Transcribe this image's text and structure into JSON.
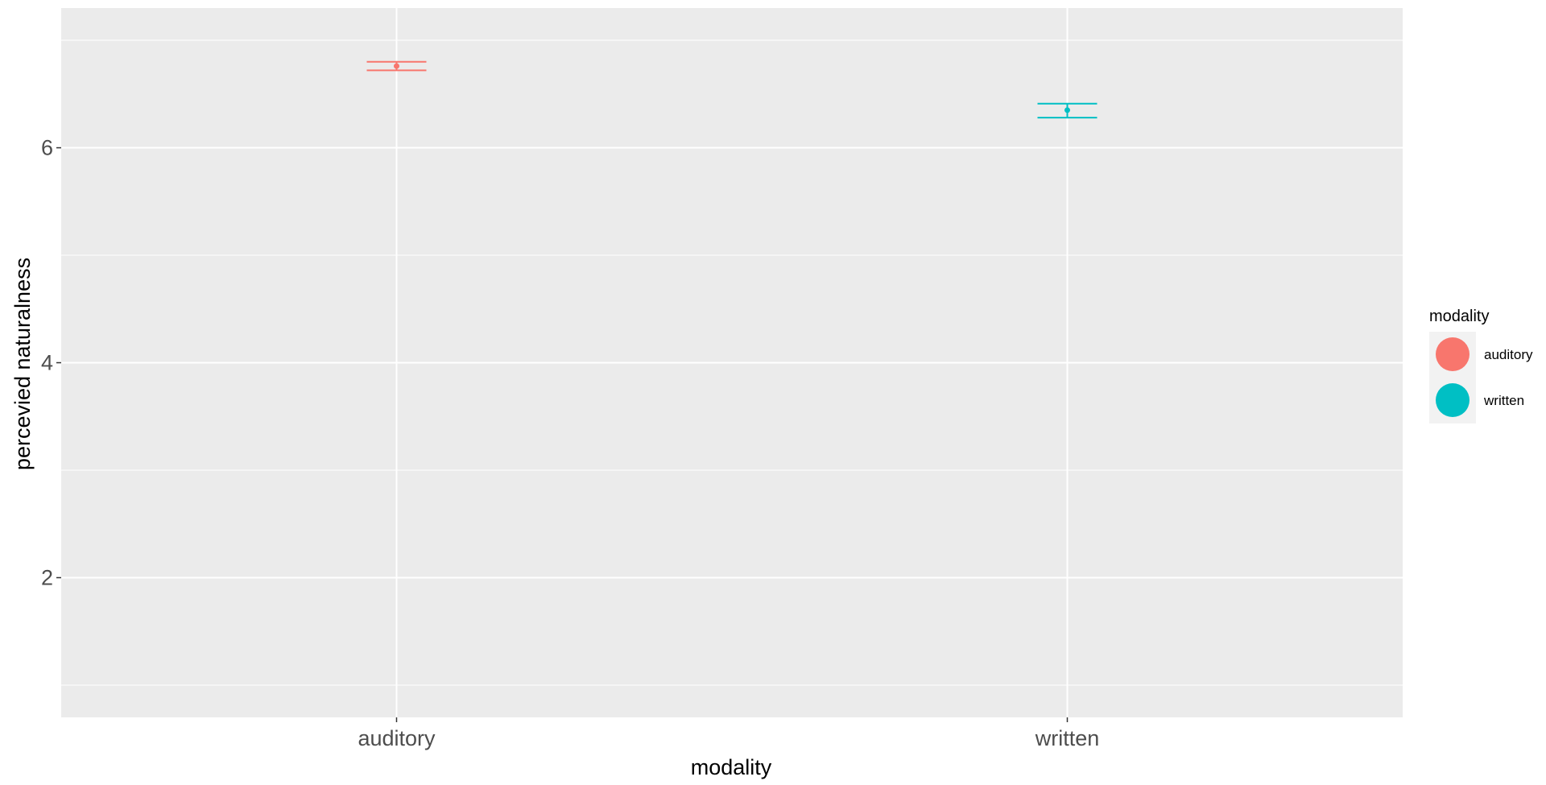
{
  "chart_data": {
    "type": "scatter",
    "subtype": "point-with-errorbars",
    "xlabel": "modality",
    "ylabel": "percevied naturalness",
    "categories": [
      "auditory",
      "written"
    ],
    "ylim": [
      0.7,
      7.3
    ],
    "yticks": [
      2,
      4,
      6
    ],
    "grid": true,
    "series": [
      {
        "name": "auditory",
        "category": "auditory",
        "value": 6.76,
        "lower": 6.72,
        "upper": 6.8,
        "color": "#F8766D"
      },
      {
        "name": "written",
        "category": "written",
        "value": 6.35,
        "lower": 6.28,
        "upper": 6.41,
        "color": "#00BFC4"
      }
    ],
    "legend": {
      "title": "modality",
      "position": "right",
      "items": [
        {
          "label": "auditory",
          "color": "#F8766D"
        },
        {
          "label": "written",
          "color": "#00BFC4"
        }
      ]
    },
    "panel_background": "#EBEBEB",
    "grid_color": "#FFFFFF"
  }
}
